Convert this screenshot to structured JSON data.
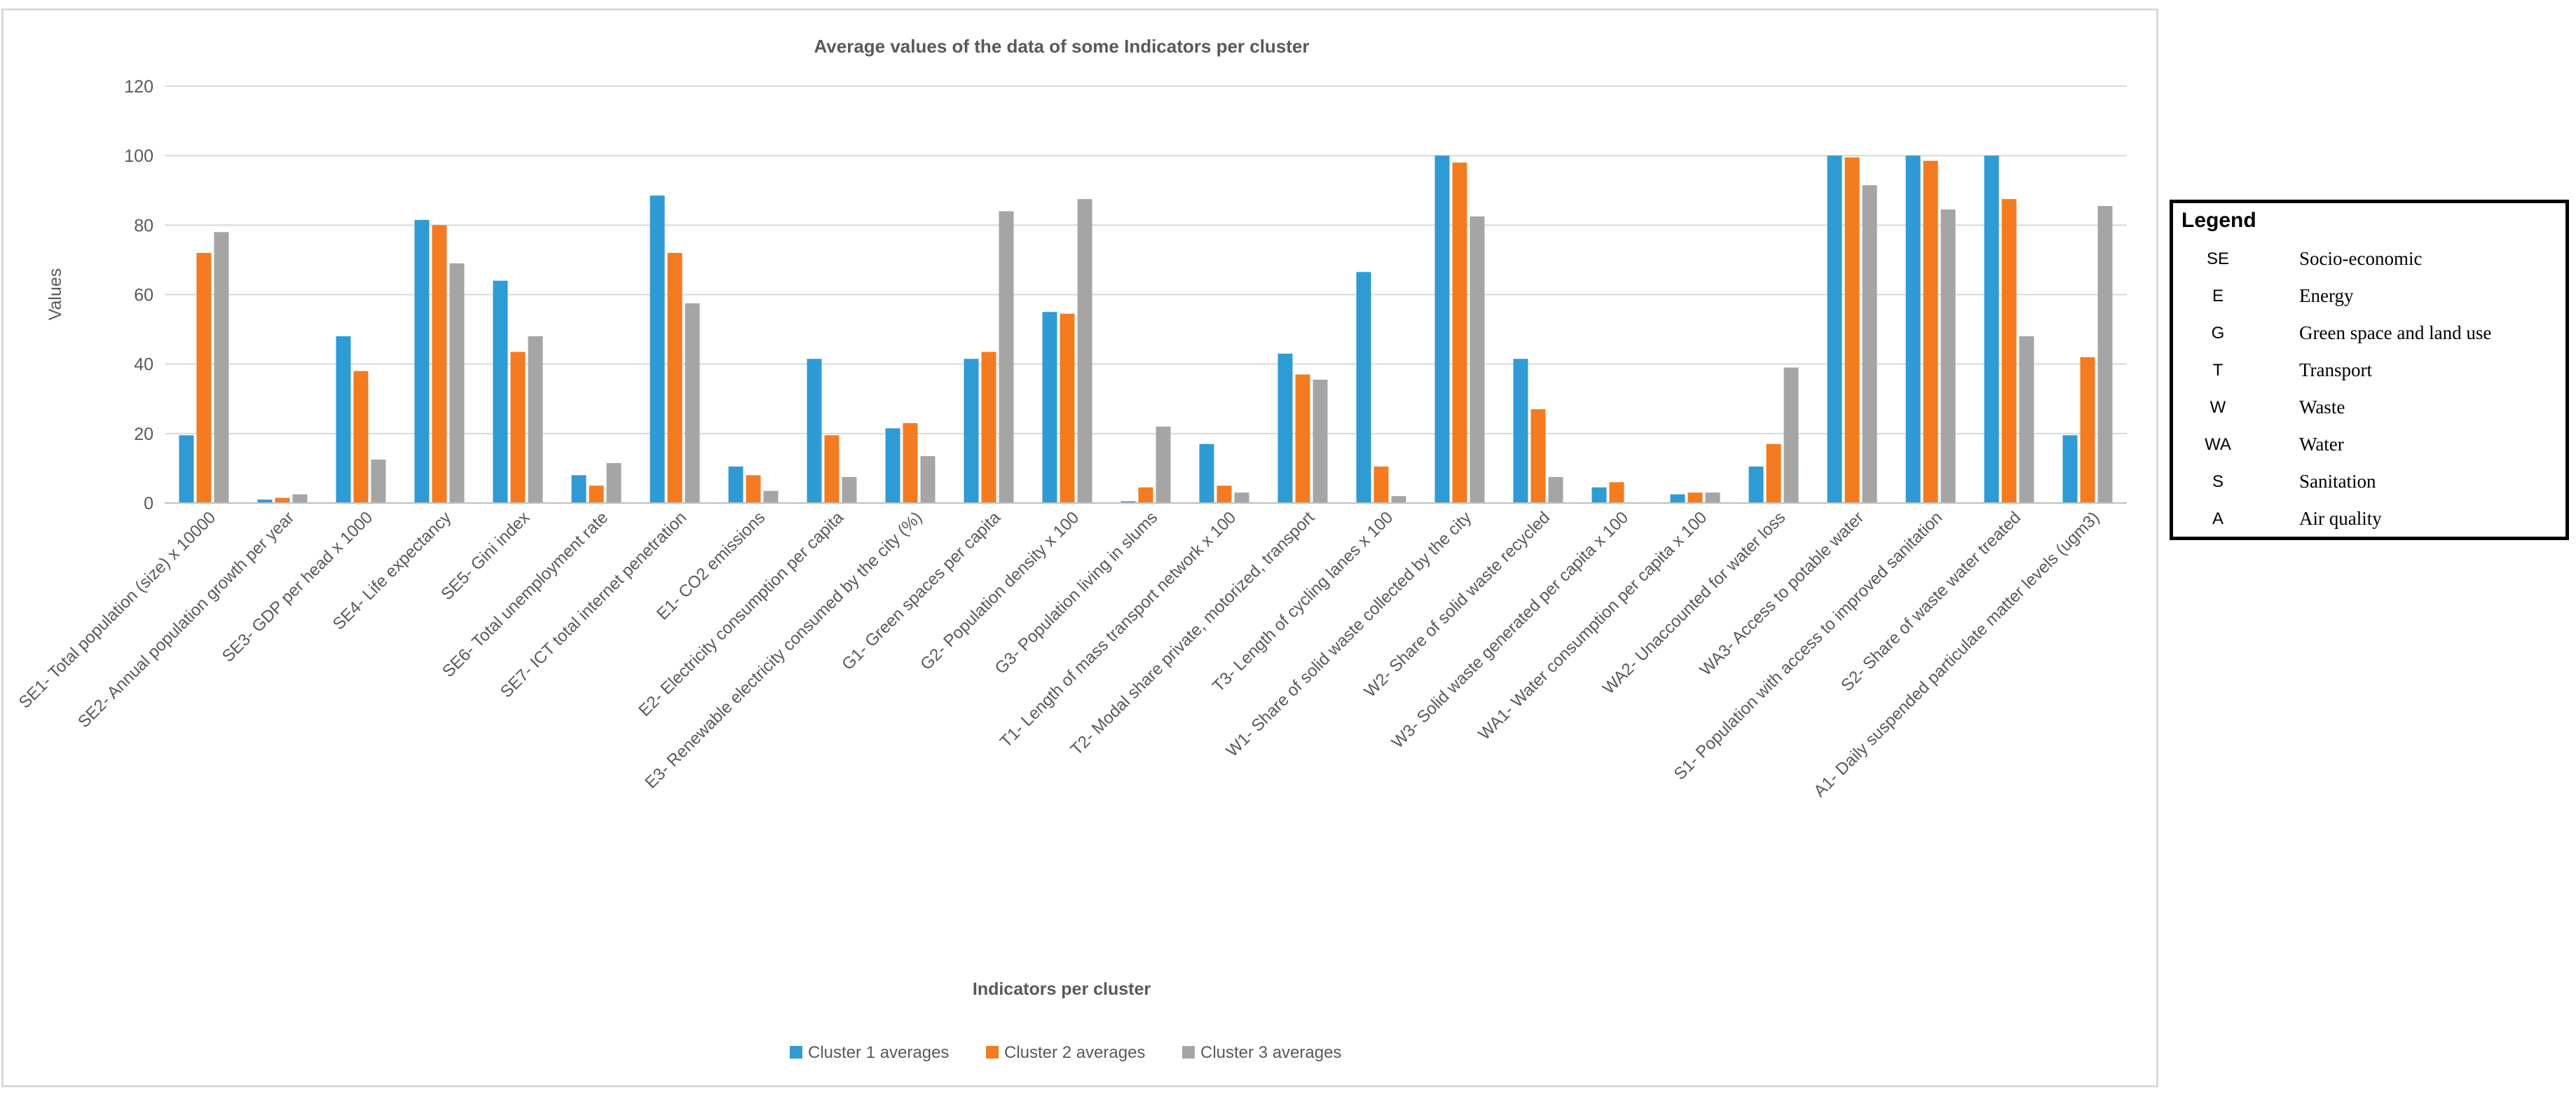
{
  "chart_data": {
    "type": "bar",
    "title": "Average values of the data of some Indicators per cluster",
    "xlabel": "Indicators per cluster",
    "ylabel": "Values",
    "ylim": [
      0,
      120
    ],
    "yticks": [
      0,
      20,
      40,
      60,
      80,
      100,
      120
    ],
    "grid": true,
    "legend_position": "bottom",
    "categories": [
      "SE1- Total population (size) x 10000",
      "SE2- Annual population growth per year",
      "SE3- GDP per head x 1000",
      "SE4- Life expectancy",
      "SE5- Gini index",
      "SE6- Total unemployment rate",
      "SE7- ICT total internet penetration",
      "E1- CO2 emissions",
      "E2- Electricity consumption per capita",
      "E3- Renewable electricity consumed by the city (%)",
      "G1- Green spaces per capita",
      "G2- Population density x 100",
      "G3- Population living in slums",
      "T1- Length of mass transport network x 100",
      "T2- Modal share private, motorized, transport",
      "T3- Length of cycling lanes x 100",
      "W1- Share of solid waste collected by the city",
      "W2- Share of solid waste recycled",
      "W3- Solid waste generated per capita x 100",
      "WA1- Water consumption per capita x 100",
      "WA2- Unaccounted for water loss",
      "WA3- Access to potable water",
      "S1- Population with access to improved sanitation",
      "S2- Share of waste water treated",
      "A1- Daily suspended particulate matter levels (ugm3)"
    ],
    "series": [
      {
        "name": "Cluster 1 averages",
        "color": "#2e9bd4",
        "values": [
          19.5,
          1,
          48,
          81.5,
          64,
          8,
          88.5,
          10.5,
          41.5,
          21.5,
          41.5,
          55,
          0.5,
          17,
          43,
          66.5,
          100,
          41.5,
          4.5,
          2.5,
          10.5,
          100,
          100,
          100,
          19.5
        ]
      },
      {
        "name": "Cluster 2 averages",
        "color": "#f47b20",
        "values": [
          72,
          1.5,
          38,
          80,
          43.5,
          5,
          72,
          8,
          19.5,
          23,
          43.5,
          54.5,
          4.5,
          5,
          37,
          10.5,
          98,
          27,
          6,
          3,
          17,
          99.5,
          98.5,
          87.5,
          42
        ]
      },
      {
        "name": "Cluster 3 averages",
        "color": "#a5a5a5",
        "values": [
          78,
          2.5,
          12.5,
          69,
          48,
          11.5,
          57.5,
          3.5,
          7.5,
          13.5,
          84,
          87.5,
          22,
          3,
          35.5,
          2,
          82.5,
          7.5,
          0,
          3,
          39,
          91.5,
          84.5,
          48,
          85.5
        ]
      }
    ]
  },
  "legend_box": {
    "title": "Legend",
    "rows": [
      {
        "abbr": "SE",
        "desc": "Socio-economic"
      },
      {
        "abbr": "E",
        "desc": "Energy"
      },
      {
        "abbr": "G",
        "desc": "Green space and land use"
      },
      {
        "abbr": "T",
        "desc": "Transport"
      },
      {
        "abbr": "W",
        "desc": "Waste"
      },
      {
        "abbr": "WA",
        "desc": "Water"
      },
      {
        "abbr": "S",
        "desc": "Sanitation"
      },
      {
        "abbr": "A",
        "desc": "Air quality"
      }
    ]
  }
}
